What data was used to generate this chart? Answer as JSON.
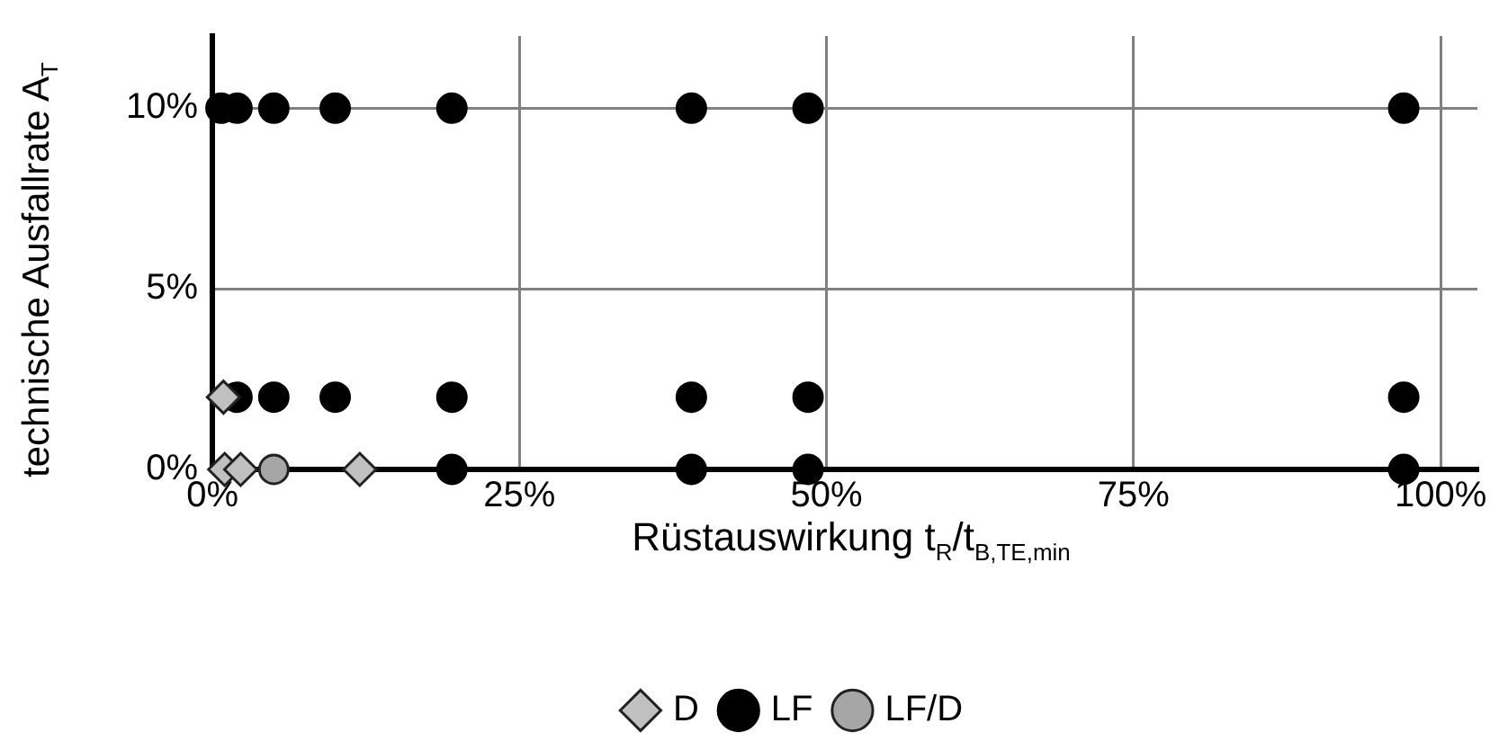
{
  "chart_data": {
    "type": "scatter",
    "xlabel": "Rüstauswirkung t$_{R}$/t$_{B,TE,min}$",
    "ylabel": "technische Ausfallrate A$_{T}$",
    "xlim": [
      0,
      103
    ],
    "ylim": [
      0,
      12
    ],
    "xticks": [
      {
        "value": 0,
        "label": "0%"
      },
      {
        "value": 25,
        "label": "25%"
      },
      {
        "value": 50,
        "label": "50%"
      },
      {
        "value": 75,
        "label": "75%"
      },
      {
        "value": 100,
        "label": "100%"
      }
    ],
    "yticks": [
      {
        "value": 0,
        "label": "0%"
      },
      {
        "value": 5,
        "label": "5%"
      },
      {
        "value": 10,
        "label": "10%"
      }
    ],
    "grid": true,
    "legend": "bottom",
    "series": [
      {
        "name": "D",
        "color": "#c0c0c0",
        "marker": "diamond",
        "x": [
          0.9,
          1,
          2.3,
          12
        ],
        "values": [
          2,
          0,
          0,
          0
        ]
      },
      {
        "name": "LF",
        "color": "#000000",
        "marker": "circle",
        "x": [
          0.7,
          2,
          5,
          10,
          19.5,
          39,
          48.5,
          97,
          2,
          5,
          10,
          19.5,
          39,
          48.5,
          97,
          19.5,
          39,
          48.5,
          97
        ],
        "values": [
          10,
          10,
          10,
          10,
          10,
          10,
          10,
          10,
          2,
          2,
          2,
          2,
          2,
          2,
          2,
          0,
          0,
          0,
          0
        ]
      },
      {
        "name": "LF/D",
        "color": "#a6a6a6",
        "marker": "circle",
        "x": [
          5
        ],
        "values": [
          0
        ]
      }
    ]
  }
}
